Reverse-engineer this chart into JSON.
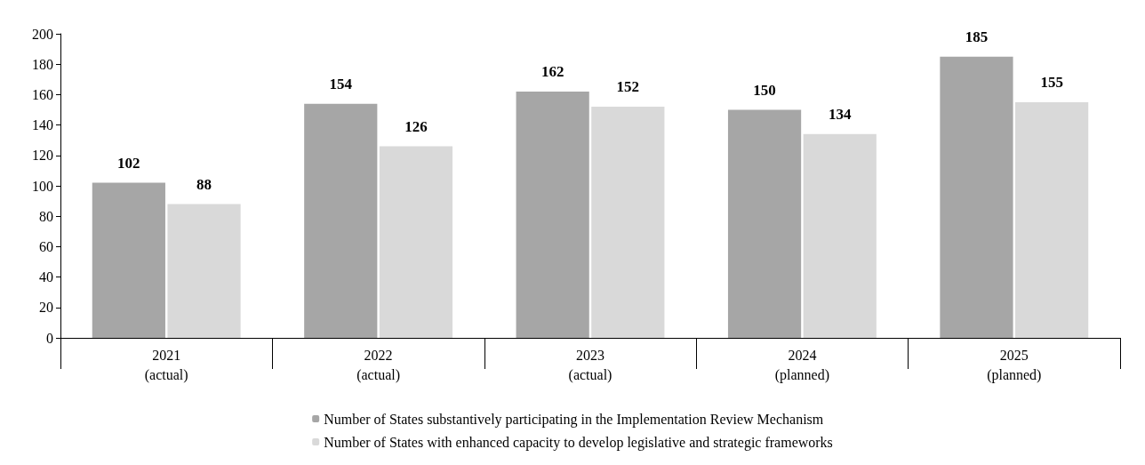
{
  "chart_data": {
    "type": "bar",
    "categories": [
      "2021\n(actual)",
      "2022\n(actual)",
      "2023\n(actual)",
      "2024\n(planned)",
      "2025\n(planned)"
    ],
    "series": [
      {
        "name": "Number of States substantively participating in the Implementation Review Mechanism",
        "color": "#a6a6a6",
        "values": [
          102,
          154,
          162,
          150,
          185
        ]
      },
      {
        "name": "Number of States with enhanced capacity to develop legislative and strategic frameworks",
        "color": "#d9d9d9",
        "values": [
          88,
          126,
          152,
          134,
          155
        ]
      }
    ],
    "ylim": [
      0,
      200
    ],
    "yticks": [
      0,
      20,
      40,
      60,
      80,
      100,
      120,
      140,
      160,
      180,
      200
    ],
    "grid": false,
    "legend": "bottom",
    "data_labels": true
  }
}
